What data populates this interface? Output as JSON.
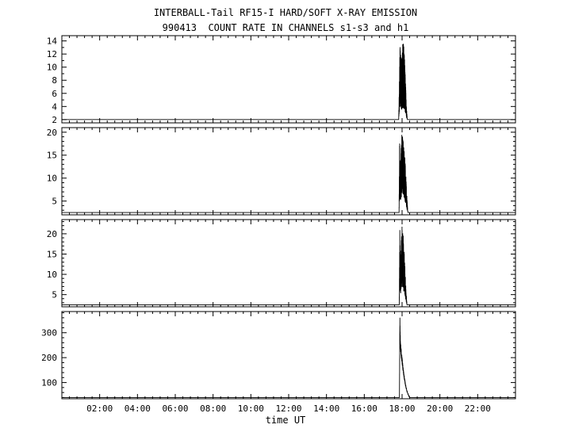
{
  "header": {
    "title": "INTERBALL-Tail RF15-I HARD/SOFT X-RAY EMISSION",
    "subtitle": "990413  COUNT RATE IN CHANNELS s1-s3 and h1"
  },
  "colors": {
    "background": "#ffffff",
    "foreground": "#000000"
  },
  "chart_data": {
    "type": "line",
    "title": "INTERBALL-Tail RF15-I HARD/SOFT X-RAY EMISSION",
    "subtitle": "990413  COUNT RATE IN CHANNELS s1-s3 and h1",
    "date": "990413",
    "xlabel": "time UT",
    "x_unit": "hours",
    "xlim": [
      0,
      24
    ],
    "x_major_tick_hours": [
      2,
      4,
      6,
      8,
      10,
      12,
      14,
      16,
      18,
      20,
      22
    ],
    "x_major_tick_labels": [
      "02:00",
      "04:00",
      "06:00",
      "08:00",
      "10:00",
      "12:00",
      "14:00",
      "16:00",
      "18:00",
      "20:00",
      "22:00"
    ],
    "x_minor_step_hours": 0.4,
    "grid": false,
    "legend_position": "none",
    "line_color": "#000000",
    "background_color": "#ffffff",
    "noise_seed": 990413,
    "sample_step_hours": 0.0015,
    "burst_time_ut": "~17:50-18:20",
    "panels": [
      {
        "channel": "s1",
        "ylim": [
          1.5,
          14.8
        ],
        "yticks": [
          2,
          4,
          6,
          8,
          10,
          12,
          14
        ],
        "y_minor_step": 1,
        "baseline": 2,
        "peak_value": 14,
        "noise_floor": 0.15,
        "burst_envelope": [
          [
            17.82,
            2
          ],
          [
            17.86,
            9
          ],
          [
            17.89,
            14
          ],
          [
            17.93,
            12
          ],
          [
            17.98,
            11
          ],
          [
            18.03,
            14
          ],
          [
            18.08,
            13.5
          ],
          [
            18.13,
            12
          ],
          [
            18.18,
            8
          ],
          [
            18.23,
            4
          ],
          [
            18.28,
            2
          ]
        ]
      },
      {
        "channel": "s2",
        "ylim": [
          2,
          21
        ],
        "yticks": [
          5,
          10,
          15,
          20
        ],
        "y_minor_step": 1,
        "baseline": 2.5,
        "peak_value": 20,
        "noise_floor": 0.2,
        "burst_envelope": [
          [
            17.84,
            3
          ],
          [
            17.87,
            20
          ],
          [
            17.9,
            10
          ],
          [
            17.94,
            16
          ],
          [
            17.99,
            20
          ],
          [
            18.05,
            19
          ],
          [
            18.1,
            17
          ],
          [
            18.16,
            14
          ],
          [
            18.22,
            9
          ],
          [
            18.27,
            5
          ],
          [
            18.31,
            2.5
          ]
        ]
      },
      {
        "channel": "s3",
        "ylim": [
          2,
          23.5
        ],
        "yticks": [
          5,
          10,
          15,
          20
        ],
        "y_minor_step": 1,
        "baseline": 2.5,
        "peak_value": 22,
        "noise_floor": 0.2,
        "burst_envelope": [
          [
            17.85,
            3
          ],
          [
            17.88,
            21
          ],
          [
            17.91,
            12
          ],
          [
            17.95,
            18
          ],
          [
            18.0,
            22
          ],
          [
            18.06,
            20
          ],
          [
            18.11,
            16
          ],
          [
            18.16,
            11
          ],
          [
            18.21,
            6
          ],
          [
            18.26,
            2.5
          ]
        ]
      },
      {
        "channel": "h1",
        "ylim": [
          35,
          385
        ],
        "yticks": [
          100,
          200,
          300
        ],
        "y_minor_step": 20,
        "baseline": 40,
        "peak_value": 370,
        "noise_floor": 0.82,
        "burst_envelope": [
          [
            17.86,
            40
          ],
          [
            17.885,
            370
          ],
          [
            17.91,
            280
          ],
          [
            17.96,
            230
          ],
          [
            18.01,
            195
          ],
          [
            18.06,
            160
          ],
          [
            18.12,
            125
          ],
          [
            18.18,
            95
          ],
          [
            18.25,
            70
          ],
          [
            18.33,
            52
          ],
          [
            18.4,
            40
          ]
        ]
      }
    ]
  }
}
